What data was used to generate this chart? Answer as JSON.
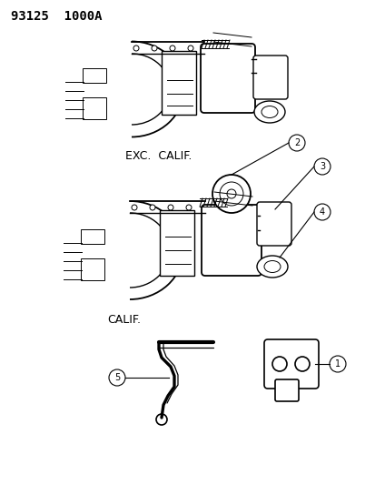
{
  "title": "93125  1000A",
  "background_color": "#ffffff",
  "text_color": "#000000",
  "line_color": "#000000",
  "label_exc_calif": "EXC.  CALIF.",
  "label_calif": "CALIF.",
  "fig_width": 4.14,
  "fig_height": 5.33,
  "dpi": 100
}
